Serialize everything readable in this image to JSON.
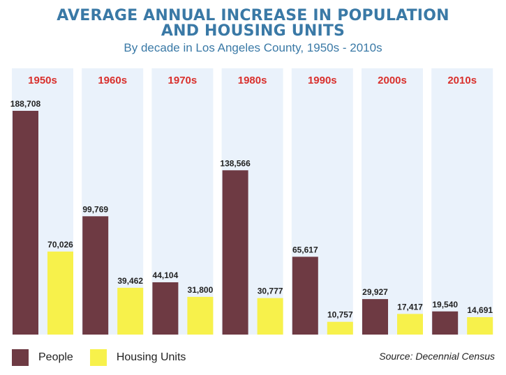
{
  "chart_data": {
    "type": "bar",
    "title_lines": [
      "AVERAGE ANNUAL INCREASE IN POPULATION",
      "AND HOUSING UNITS"
    ],
    "subtitle": "By decade in Los Angeles County, 1950s - 2010s",
    "categories": [
      "1950s",
      "1960s",
      "1970s",
      "1980s",
      "1990s",
      "2000s",
      "2010s"
    ],
    "series": [
      {
        "name": "People",
        "color": "#6e3a43",
        "values": [
          188708,
          99769,
          44104,
          138566,
          65617,
          29927,
          19540
        ],
        "labels": [
          "188,708",
          "99,769",
          "44,104",
          "138,566",
          "65,617",
          "29,927",
          "19,540"
        ]
      },
      {
        "name": "Housing Units",
        "color": "#f7f14b",
        "values": [
          70026,
          39462,
          31800,
          30777,
          10757,
          17417,
          14691
        ],
        "labels": [
          "70,026",
          "39,462",
          "31,800",
          "30,777",
          "10,757",
          "17,417",
          "14,691"
        ]
      }
    ],
    "ylim": [
      0,
      188708
    ],
    "legend_position": "bottom-left",
    "grid": false,
    "source": "Source: Decennial Census",
    "colors": {
      "title": "#3a79a6",
      "decade_label": "#d9302c",
      "panel_background": "#eaf2fb"
    }
  }
}
